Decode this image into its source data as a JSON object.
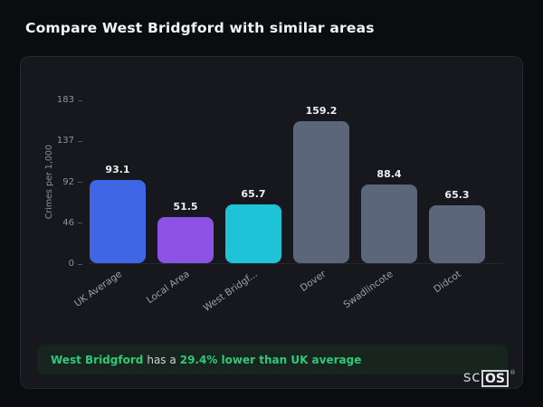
{
  "page": {
    "title": "Compare West Bridgford with similar areas"
  },
  "chart_data": {
    "type": "bar",
    "categories": [
      "UK Average",
      "Local Area",
      "West Bridgf...",
      "Dover",
      "Swadlincote",
      "Didcot"
    ],
    "values": [
      93.1,
      51.5,
      65.7,
      159.2,
      88.4,
      65.3
    ],
    "value_labels": [
      "93.1",
      "51.5",
      "65.7",
      "159.2",
      "88.4",
      "65.3"
    ],
    "bar_colors": [
      "#3f66e4",
      "#8b52e3",
      "#1ec3d7",
      "#5b667a",
      "#5b667a",
      "#5b667a"
    ],
    "title": "",
    "xlabel": "",
    "ylabel": "Crimes per 1,000",
    "yticks": [
      0,
      46,
      92,
      137,
      183
    ],
    "ylim": [
      0,
      183
    ],
    "grid": false,
    "legend_position": "none"
  },
  "callout": {
    "prefix": "West Bridgford",
    "middle": "has a",
    "highlight": "29.4% lower than UK average"
  },
  "branding": {
    "logo_sc": "sc",
    "logo_os": "OS",
    "registered": "®"
  },
  "colors": {
    "background": "#0b0c0f",
    "card_background": "#16181d",
    "accent_green": "#31c876",
    "text_primary": "#f3f4f6",
    "text_muted": "#8d939c"
  }
}
